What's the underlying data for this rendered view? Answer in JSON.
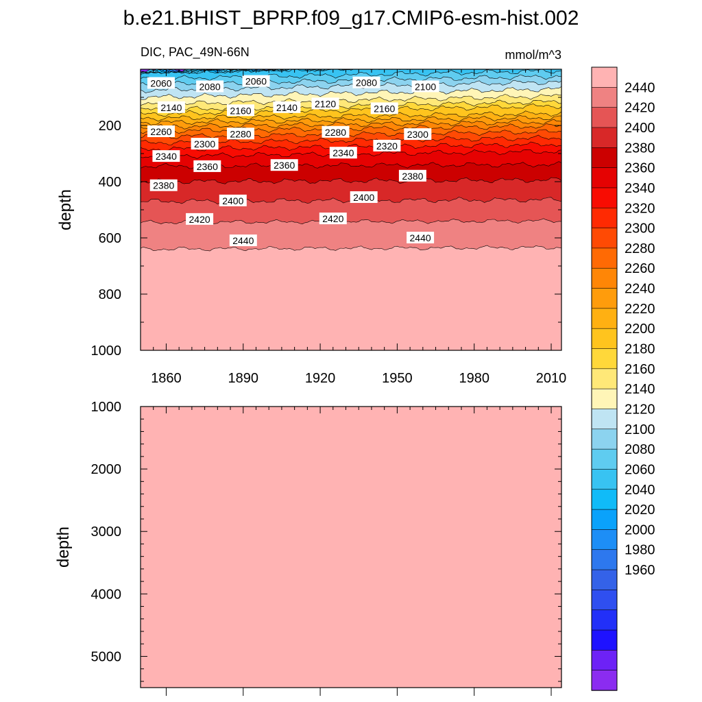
{
  "chart_data": {
    "title": "b.e21.BHIST_BPRP.f09_g17.CMIP6-esm-hist.002",
    "left_string": "DIC, PAC_49N-66N",
    "right_string": "mmol/m^3",
    "colors": {
      "levels": [
        1960,
        1980,
        2000,
        2020,
        2040,
        2060,
        2080,
        2100,
        2120,
        2140,
        2160,
        2180,
        2200,
        2220,
        2240,
        2260,
        2280,
        2300,
        2320,
        2340,
        2360,
        2380,
        2400,
        2420,
        2440
      ],
      "fill": [
        "#8b2cf0",
        "#6d22f6",
        "#1e12ff",
        "#2230f8",
        "#2f4ff0",
        "#3462e8",
        "#2d78ee",
        "#1d8ef6",
        "#0aa2fb",
        "#10bbf8",
        "#38c3f2",
        "#5fccf0",
        "#8cd3ef",
        "#bfe4f3",
        "#fff5b7",
        "#ffe878",
        "#ffd83a",
        "#ffc41e",
        "#ffb012",
        "#ff9c0c",
        "#ff8606",
        "#ff6a04",
        "#ff4a04",
        "#ff2a02",
        "#f80c02",
        "#e50202",
        "#cc0000",
        "#d82828",
        "#e55555",
        "#ef8282",
        "#ffb3b3"
      ],
      "background": "#ffffff",
      "deep_fill": "#ffb3b3"
    },
    "panels": [
      {
        "name": "upper",
        "type": "contour",
        "xlim": [
          1850,
          2014
        ],
        "ylim": [
          0,
          1000
        ],
        "yreversed": true,
        "xticks": [
          1860,
          1890,
          1920,
          1950,
          1980,
          2010
        ],
        "xtick_labels": [
          "1860",
          "1890",
          "1920",
          "1950",
          "1980",
          "2010"
        ],
        "yticks": [
          200,
          400,
          600,
          800,
          1000
        ],
        "ytick_labels": [
          "200",
          "400",
          "600",
          "800",
          "1000"
        ],
        "ylabel": "depth",
        "contour_labels": [
          {
            "text": "2060",
            "x": 1858,
            "y": 50
          },
          {
            "text": "2080",
            "x": 1877,
            "y": 62
          },
          {
            "text": "2060",
            "x": 1895,
            "y": 43
          },
          {
            "text": "2080",
            "x": 1938,
            "y": 48
          },
          {
            "text": "2100",
            "x": 1961,
            "y": 62
          },
          {
            "text": "2140",
            "x": 1862,
            "y": 136
          },
          {
            "text": "2160",
            "x": 1889,
            "y": 147
          },
          {
            "text": "2140",
            "x": 1907,
            "y": 136
          },
          {
            "text": "2120",
            "x": 1922,
            "y": 123
          },
          {
            "text": "2160",
            "x": 1945,
            "y": 140
          },
          {
            "text": "2260",
            "x": 1858,
            "y": 222
          },
          {
            "text": "2280",
            "x": 1889,
            "y": 230
          },
          {
            "text": "2280",
            "x": 1926,
            "y": 224
          },
          {
            "text": "2300",
            "x": 1958,
            "y": 232
          },
          {
            "text": "2300",
            "x": 1875,
            "y": 266
          },
          {
            "text": "2340",
            "x": 1860,
            "y": 310
          },
          {
            "text": "2340",
            "x": 1929,
            "y": 298
          },
          {
            "text": "2320",
            "x": 1946,
            "y": 273
          },
          {
            "text": "2360",
            "x": 1876,
            "y": 346
          },
          {
            "text": "2360",
            "x": 1906,
            "y": 342
          },
          {
            "text": "2380",
            "x": 1859,
            "y": 414
          },
          {
            "text": "2380",
            "x": 1956,
            "y": 380
          },
          {
            "text": "2400",
            "x": 1886,
            "y": 468
          },
          {
            "text": "2400",
            "x": 1937,
            "y": 456
          },
          {
            "text": "2420",
            "x": 1873,
            "y": 534
          },
          {
            "text": "2420",
            "x": 1925,
            "y": 532
          },
          {
            "text": "2440",
            "x": 1890,
            "y": 610
          },
          {
            "text": "2440",
            "x": 1959,
            "y": 600
          }
        ]
      },
      {
        "name": "lower",
        "type": "contour",
        "xlim": [
          1850,
          2014
        ],
        "ylim": [
          1000,
          5500
        ],
        "yreversed": true,
        "yticks": [
          1000,
          2000,
          3000,
          4000,
          5000
        ],
        "ytick_labels": [
          "1000",
          "2000",
          "3000",
          "4000",
          "5000"
        ],
        "ylabel": "depth",
        "uniform_value_above": 2440
      }
    ],
    "colorbar": {
      "labels": [
        "2440",
        "2420",
        "2400",
        "2380",
        "2360",
        "2340",
        "2320",
        "2300",
        "2280",
        "2260",
        "2240",
        "2220",
        "2200",
        "2180",
        "2160",
        "2140",
        "2120",
        "2100",
        "2080",
        "2060",
        "2040",
        "2020",
        "2000",
        "1980",
        "1960"
      ]
    }
  }
}
